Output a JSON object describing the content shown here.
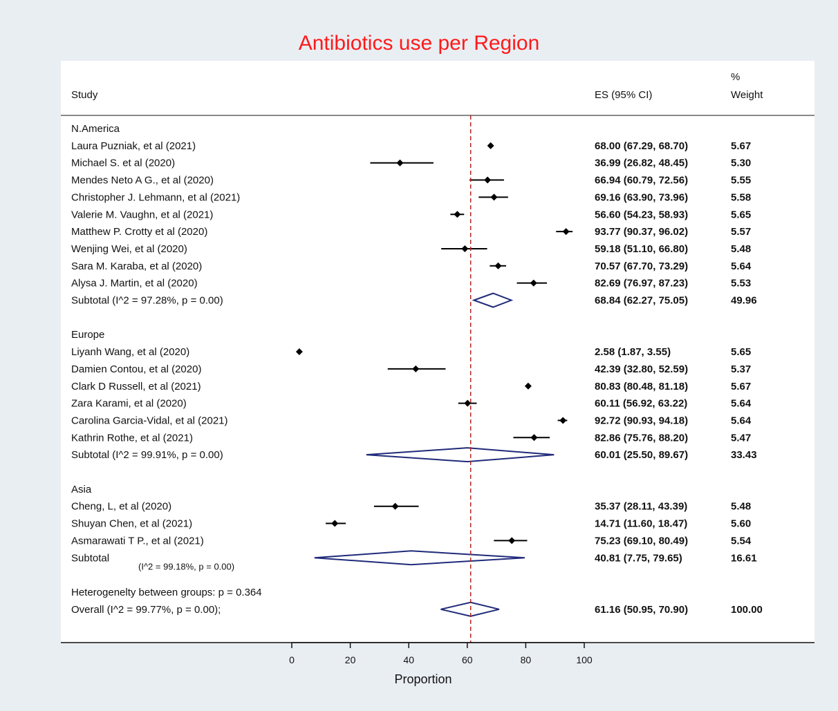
{
  "chart_data": {
    "type": "forest",
    "title": "Antibiotics use per Region",
    "xlabel": "Proportion",
    "xlim": [
      0,
      100
    ],
    "xticks": [
      "0",
      "20",
      "40",
      "60",
      "80",
      "100"
    ],
    "reference_line": 61.16,
    "columns": {
      "study": "Study",
      "es": "ES (95% CI)",
      "weight_pct": "%",
      "weight": "Weight"
    },
    "groups": [
      {
        "name": "N.America",
        "studies": [
          {
            "label": "Laura Puzniak, et al (2021)",
            "es": 68.0,
            "lo": 67.29,
            "hi": 68.7,
            "es_text": "68.00 (67.29, 68.70)",
            "weight": "5.67"
          },
          {
            "label": "Michael S. et al (2020)",
            "es": 36.99,
            "lo": 26.82,
            "hi": 48.45,
            "es_text": "36.99 (26.82, 48.45)",
            "weight": "5.30"
          },
          {
            "label": "Mendes Neto A G., et al (2020)",
            "es": 66.94,
            "lo": 60.79,
            "hi": 72.56,
            "es_text": "66.94 (60.79, 72.56)",
            "weight": "5.55"
          },
          {
            "label": "Christopher J. Lehmann, et al (2021)",
            "es": 69.16,
            "lo": 63.9,
            "hi": 73.96,
            "es_text": "69.16 (63.90, 73.96)",
            "weight": "5.58"
          },
          {
            "label": "Valerie M. Vaughn, et al (2021)",
            "es": 56.6,
            "lo": 54.23,
            "hi": 58.93,
            "es_text": "56.60 (54.23, 58.93)",
            "weight": "5.65"
          },
          {
            "label": "Matthew P. Crotty et al (2020)",
            "es": 93.77,
            "lo": 90.37,
            "hi": 96.02,
            "es_text": "93.77 (90.37, 96.02)",
            "weight": "5.57"
          },
          {
            "label": "Wenjing Wei, et al (2020)",
            "es": 59.18,
            "lo": 51.1,
            "hi": 66.8,
            "es_text": "59.18 (51.10, 66.80)",
            "weight": "5.48"
          },
          {
            "label": "Sara M. Karaba, et al (2020)",
            "es": 70.57,
            "lo": 67.7,
            "hi": 73.29,
            "es_text": "70.57 (67.70, 73.29)",
            "weight": "5.64"
          },
          {
            "label": "Alysa J. Martin, et al (2020)",
            "es": 82.69,
            "lo": 76.97,
            "hi": 87.23,
            "es_text": "82.69 (76.97, 87.23)",
            "weight": "5.53"
          }
        ],
        "subtotal": {
          "label": "Subtotal  (I^2 = 97.28%, p = 0.00)",
          "es": 68.84,
          "lo": 62.27,
          "hi": 75.05,
          "es_text": "68.84 (62.27, 75.05)",
          "weight": "49.96"
        }
      },
      {
        "name": "Europe",
        "studies": [
          {
            "label": "Liyanh Wang, et al (2020)",
            "es": 2.58,
            "lo": 1.87,
            "hi": 3.55,
            "es_text": "2.58 (1.87, 3.55)",
            "weight": "5.65"
          },
          {
            "label": "Damien Contou, et al (2020)",
            "es": 42.39,
            "lo": 32.8,
            "hi": 52.59,
            "es_text": "42.39 (32.80, 52.59)",
            "weight": "5.37"
          },
          {
            "label": "Clark D Russell, et al (2021)",
            "es": 80.83,
            "lo": 80.48,
            "hi": 81.18,
            "es_text": "80.83 (80.48, 81.18)",
            "weight": "5.67"
          },
          {
            "label": "Zara Karami, et al (2020)",
            "es": 60.11,
            "lo": 56.92,
            "hi": 63.22,
            "es_text": "60.11 (56.92, 63.22)",
            "weight": "5.64"
          },
          {
            "label": "Carolina Garcia-Vidal, et al (2021)",
            "es": 92.72,
            "lo": 90.93,
            "hi": 94.18,
            "es_text": "92.72 (90.93, 94.18)",
            "weight": "5.64"
          },
          {
            "label": "Kathrin Rothe, et al (2021)",
            "es": 82.86,
            "lo": 75.76,
            "hi": 88.2,
            "es_text": "82.86 (75.76, 88.20)",
            "weight": "5.47"
          }
        ],
        "subtotal": {
          "label": "Subtotal  (I^2 = 99.91%, p = 0.00)",
          "es": 60.01,
          "lo": 25.5,
          "hi": 89.67,
          "es_text": "60.01 (25.50, 89.67)",
          "weight": "33.43"
        }
      },
      {
        "name": "Asia",
        "studies": [
          {
            "label": "Cheng, L, et al (2020)",
            "es": 35.37,
            "lo": 28.11,
            "hi": 43.39,
            "es_text": "35.37 (28.11, 43.39)",
            "weight": "5.48"
          },
          {
            "label": "Shuyan Chen, et al (2021)",
            "es": 14.71,
            "lo": 11.6,
            "hi": 18.47,
            "es_text": "14.71 (11.60, 18.47)",
            "weight": "5.60"
          },
          {
            "label": "Asmarawati T P., et al (2021)",
            "es": 75.23,
            "lo": 69.1,
            "hi": 80.49,
            "es_text": "75.23 (69.10, 80.49)",
            "weight": "5.54"
          }
        ],
        "subtotal": {
          "label": "Subtotal",
          "stats": "(I^2 = 99.18%, p = 0.00)",
          "es": 40.81,
          "lo": 7.75,
          "hi": 79.65,
          "es_text": "40.81 (7.75, 79.65)",
          "weight": "16.61"
        }
      }
    ],
    "heterogeneity_note": "Heterogenelty between groups: p = 0.364",
    "overall": {
      "label": "Overall  (I^2 = 99.77%, p = 0.00);",
      "es": 61.16,
      "lo": 50.95,
      "hi": 70.9,
      "es_text": "61.16 (50.95, 70.90)",
      "weight": "100.00"
    },
    "colors": {
      "title": "#ff1a1a",
      "diamond": "#1f2a7a",
      "reference_line": "#b22222",
      "marker": "#000000",
      "panel_background": "#e9eef3"
    }
  }
}
